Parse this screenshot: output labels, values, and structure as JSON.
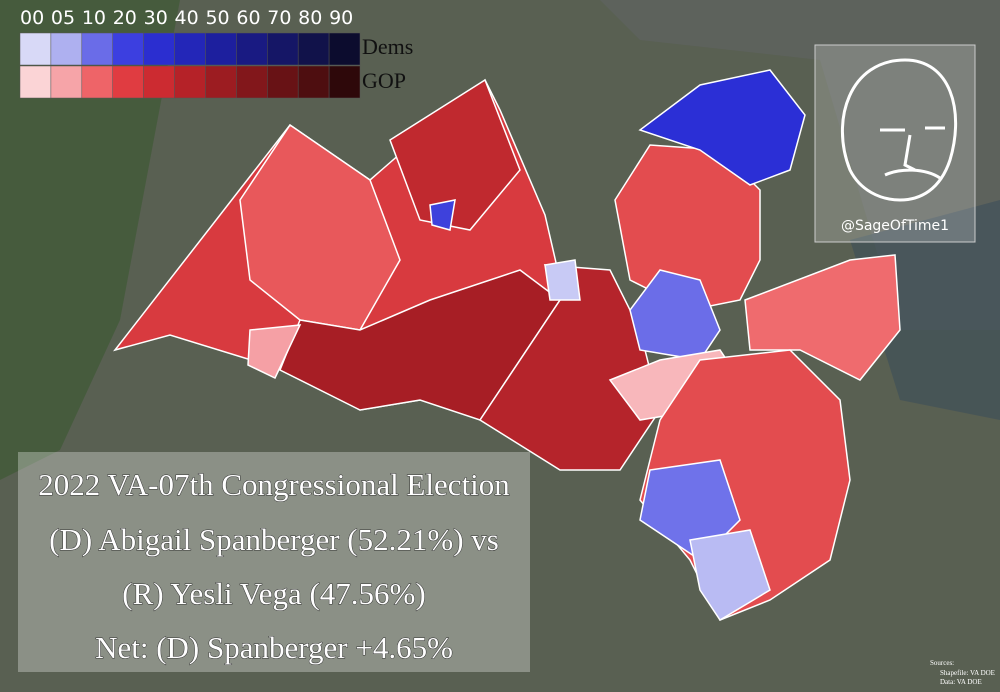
{
  "legend": {
    "labels": [
      "00",
      "05",
      "10",
      "20",
      "30",
      "40",
      "50",
      "60",
      "70",
      "80",
      "90"
    ],
    "rows": [
      "Dems",
      "GOP"
    ]
  },
  "title": {
    "lines": [
      "2022 VA-07th Congressional Election",
      "(D) Abigail Spanberger (52.21%) vs",
      "(R) Yesli Vega (47.56%)",
      "Net: (D) Spanberger +4.65%"
    ]
  },
  "credit": "@SageOfTime1",
  "sources": {
    "heading": "Sources:",
    "lines": [
      "Shapefile: VA DOE",
      "Data: VA DOE"
    ]
  }
}
